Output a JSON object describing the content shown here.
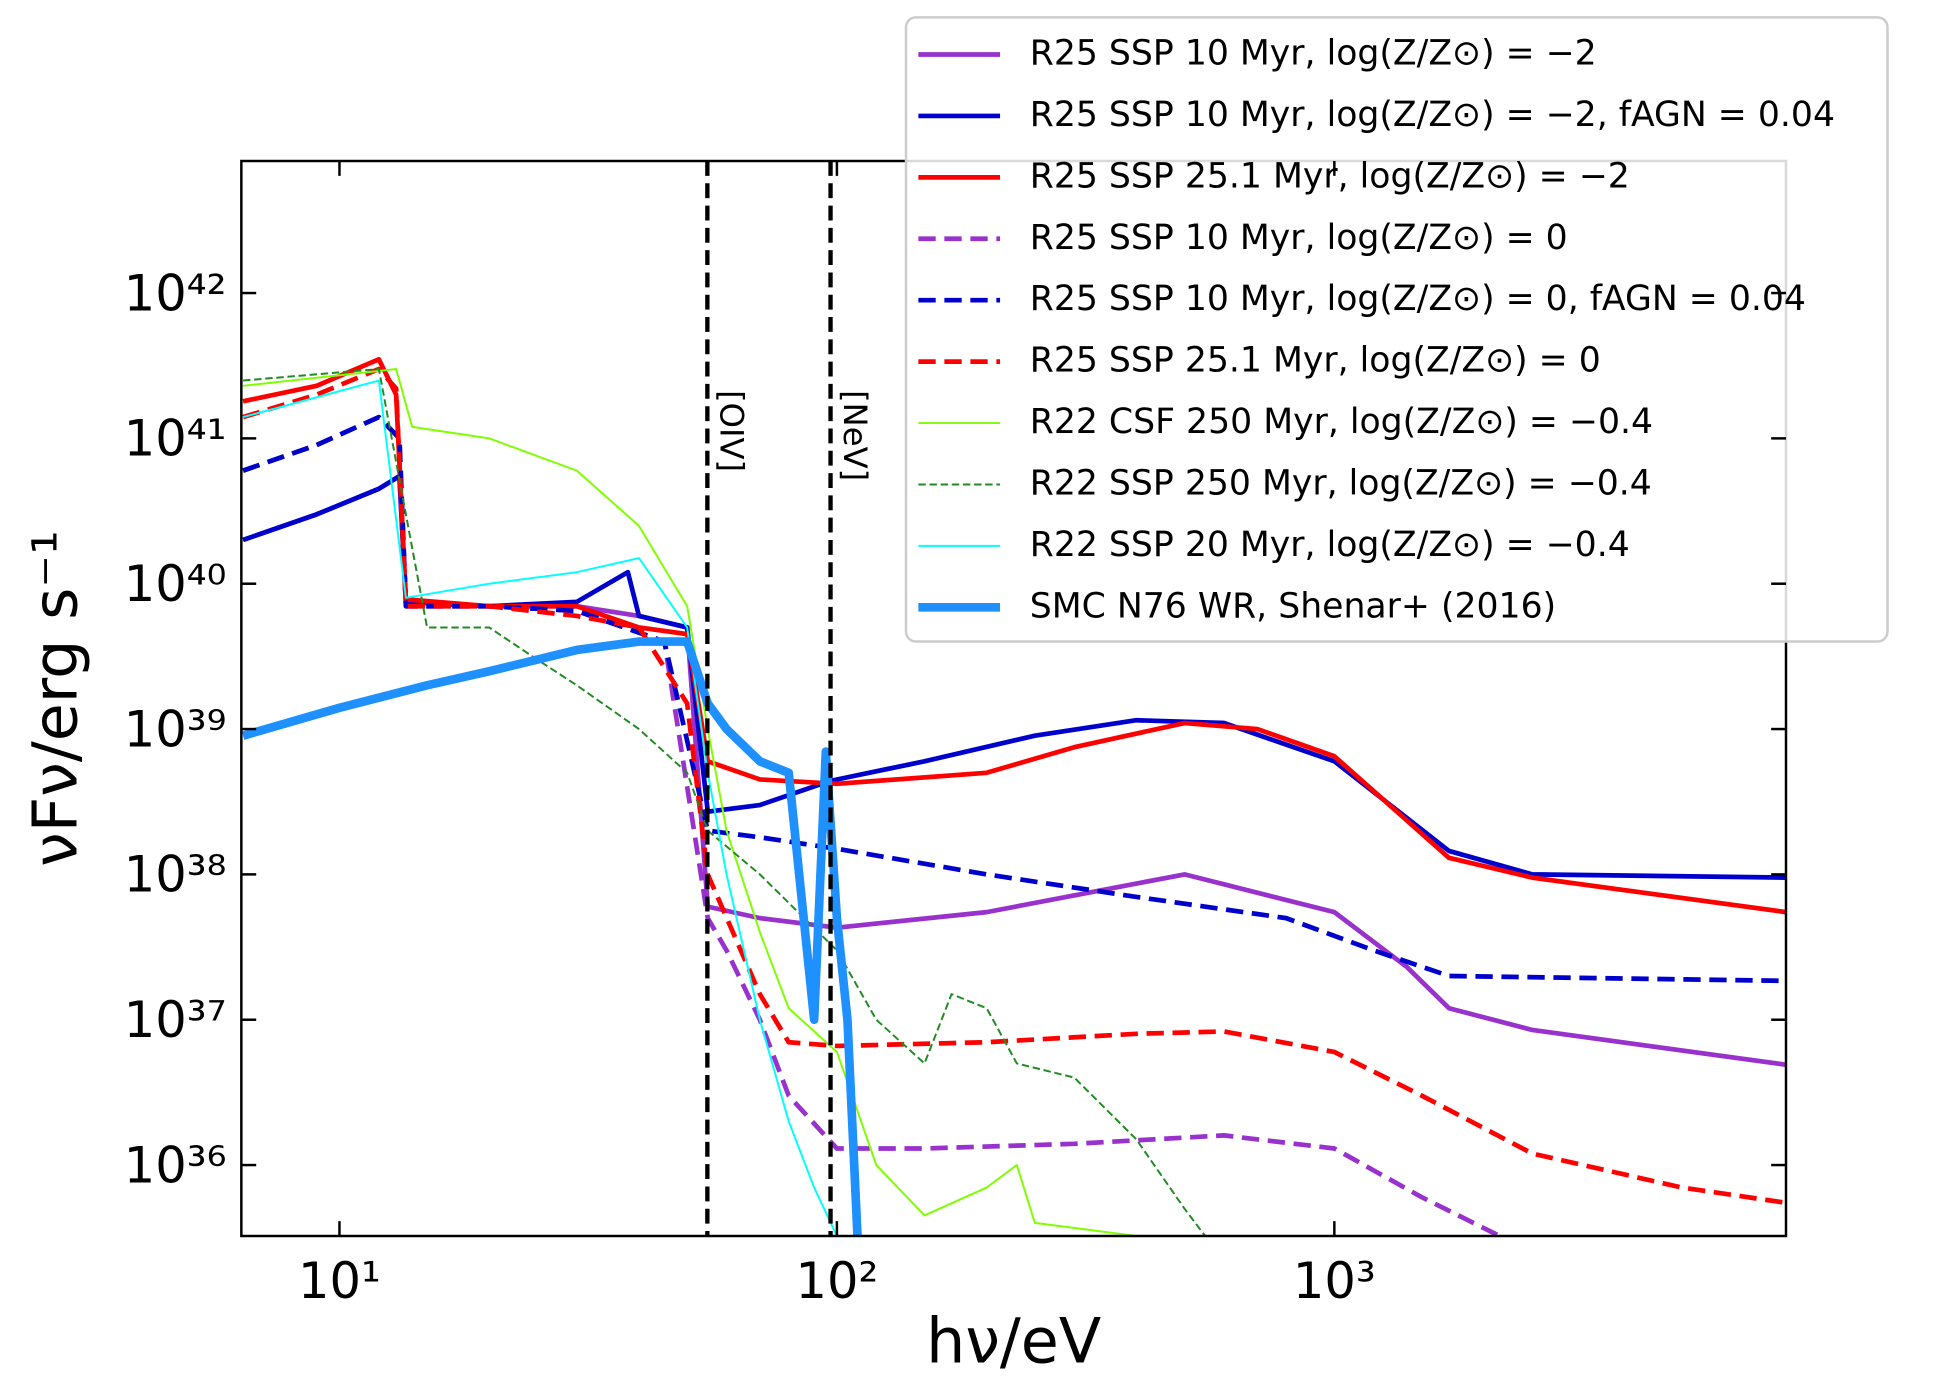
{
  "chart_data": {
    "type": "line",
    "xscale": "log",
    "yscale": "log",
    "xlabel": "hν/eV",
    "ylabel": "νFν/erg s⁻¹",
    "xlim": [
      6.35,
      8090
    ],
    "ylim": [
      3.25e+35,
      8.1e+42
    ],
    "xticks": [
      {
        "value": 10,
        "label": "10¹"
      },
      {
        "value": 100,
        "label": "10²"
      },
      {
        "value": 1000,
        "label": "10³"
      }
    ],
    "yticks": [
      {
        "value": 1e+36,
        "label": "10³⁶"
      },
      {
        "value": 1e+37,
        "label": "10³⁷"
      },
      {
        "value": 1e+38,
        "label": "10³⁸"
      },
      {
        "value": 1e+39,
        "label": "10³⁹"
      },
      {
        "value": 1e+40,
        "label": "10⁴⁰"
      },
      {
        "value": 1e+41,
        "label": "10⁴¹"
      },
      {
        "value": 1e+42,
        "label": "10⁴²"
      }
    ],
    "legend": "upper right",
    "annotations": [
      {
        "text": "[OIV]",
        "x": 54.9
      },
      {
        "text": "[NeV]",
        "x": 97.1
      }
    ],
    "series": [
      {
        "name": "R25 SSP 10 Myr, log(Z/Z⊙) = −2",
        "color": "#9932cc",
        "linestyle": "solid",
        "linewidth": "medium",
        "x": [
          6.4,
          9,
          12,
          13.2,
          13.6,
          20,
          30,
          40,
          50,
          55,
          70,
          100,
          200,
          500,
          1000,
          1400,
          1700,
          2500,
          8090
        ],
        "values": [
          2e+40,
          3e+40,
          4.5e+40,
          5.5e+40,
          7.5e+39,
          7e+39,
          7e+39,
          6e+39,
          5e+39,
          6e+37,
          5e+37,
          4.3e+37,
          5.5e+37,
          1e+38,
          5.5e+37,
          2.3e+37,
          1.2e+37,
          8.5e+36,
          4.9e+36
        ]
      },
      {
        "name": "R25 SSP 10 Myr, log(Z/Z⊙) = −2, fAGN = 0.04",
        "color": "#0000cd",
        "linestyle": "solid",
        "linewidth": "medium",
        "x": [
          6.4,
          9,
          12,
          13.2,
          13.6,
          20,
          30,
          38,
          40,
          50,
          55,
          70,
          97,
          150,
          250,
          400,
          600,
          1000,
          1700,
          2500,
          8090
        ],
        "values": [
          2e+40,
          3e+40,
          4.5e+40,
          5.5e+40,
          7.5e+39,
          7e+39,
          7.5e+39,
          1.2e+40,
          6e+39,
          5e+39,
          2.7e+38,
          3e+38,
          4.4e+38,
          6e+38,
          9e+38,
          1.15e+39,
          1.1e+39,
          6e+38,
          1.45e+38,
          1e+38,
          9.5e+37
        ]
      },
      {
        "name": "R25 SSP 25.1 Myr, log(Z/Z⊙) = −2",
        "color": "#ff0000",
        "linestyle": "solid",
        "linewidth": "medium",
        "x": [
          6.4,
          9,
          12,
          13,
          13.6,
          20,
          30,
          40,
          50,
          55,
          70,
          100,
          200,
          300,
          500,
          700,
          1000,
          1700,
          2500,
          8090
        ],
        "values": [
          1.8e+41,
          2.3e+41,
          3.5e+41,
          2e+41,
          7.8e+39,
          7e+39,
          7e+39,
          5e+39,
          4.5e+39,
          6e+38,
          4.5e+38,
          4.2e+38,
          5e+38,
          7.5e+38,
          1.1e+39,
          1e+39,
          6.5e+38,
          1.3e+38,
          9.5e+37,
          5.5e+37
        ]
      },
      {
        "name": "R25 SSP 10 Myr, log(Z/Z⊙) = 0",
        "color": "#9932cc",
        "linestyle": "dashed",
        "linewidth": "medium",
        "x": [
          6.4,
          9,
          12,
          13.2,
          13.6,
          20,
          30,
          45,
          55,
          60,
          70,
          80,
          100,
          150,
          300,
          600,
          1000,
          1500,
          2150
        ],
        "values": [
          6e+40,
          9e+40,
          1.4e+41,
          1e+41,
          7e+39,
          7e+39,
          6.5e+39,
          4e+39,
          5e+37,
          3e+37,
          1e+37,
          3e+36,
          1.3e+36,
          1.3e+36,
          1.4e+36,
          1.6e+36,
          1.3e+36,
          6e+35,
          3.25e+35
        ]
      },
      {
        "name": "R25 SSP 10 Myr, log(Z/Z⊙) = 0, fAGN = 0.04",
        "color": "#0000cd",
        "linestyle": "dashed",
        "linewidth": "medium",
        "x": [
          6.4,
          9,
          12,
          13.2,
          13.6,
          20,
          30,
          45,
          55,
          70,
          100,
          200,
          400,
          800,
          1200,
          1700,
          8090
        ],
        "values": [
          6e+40,
          9e+40,
          1.4e+41,
          1e+41,
          7e+39,
          7e+39,
          6.5e+39,
          4e+39,
          2e+38,
          1.8e+38,
          1.5e+38,
          1e+38,
          7e+37,
          5e+37,
          3e+37,
          2e+37,
          1.85e+37
        ]
      },
      {
        "name": "R25 SSP 25.1 Myr, log(Z/Z⊙) = 0",
        "color": "#ff0000",
        "linestyle": "dashed",
        "linewidth": "medium",
        "x": [
          6.4,
          9,
          12,
          13,
          13.6,
          20,
          30,
          40,
          50,
          55,
          70,
          80,
          100,
          200,
          400,
          600,
          1000,
          1500,
          2500,
          5000,
          8090
        ],
        "values": [
          1.4e+41,
          2e+41,
          3e+41,
          2.2e+41,
          7e+39,
          7e+39,
          6e+39,
          5e+39,
          1.5e+39,
          1e+38,
          1.5e+37,
          7e+36,
          6.6e+36,
          7e+36,
          8e+36,
          8.3e+36,
          6e+36,
          3e+36,
          1.2e+36,
          7e+35,
          5.5e+35
        ]
      },
      {
        "name": "R22 CSF 250 Myr, log(Z/Z⊙) = −0.4",
        "color": "#7fff00",
        "linestyle": "solid",
        "linewidth": "thin",
        "x": [
          6.4,
          13,
          14,
          20,
          30,
          40,
          50,
          55,
          60,
          70,
          80,
          100,
          120,
          150,
          200,
          230,
          250,
          400
        ],
        "values": [
          2.3e+41,
          3e+41,
          1.2e+41,
          1e+41,
          6e+40,
          2.5e+40,
          7e+39,
          1e+39,
          2e+38,
          4e+37,
          1.2e+37,
          6e+36,
          1e+36,
          4.5e+35,
          7e+35,
          1e+36,
          4e+35,
          3.25e+35
        ]
      },
      {
        "name": "R22 SSP 250 Myr, log(Z/Z⊙) = −0.4",
        "color": "#228b22",
        "linestyle": "dashed",
        "linewidth": "thin",
        "x": [
          6.4,
          12,
          13.6,
          15,
          20,
          25,
          30,
          40,
          50,
          55,
          70,
          100,
          120,
          150,
          170,
          200,
          230,
          300,
          400,
          500,
          550
        ],
        "values": [
          2.5e+41,
          3e+41,
          3e+40,
          5e+39,
          5e+39,
          3e+39,
          2e+39,
          1e+39,
          5e+38,
          2e+38,
          1e+38,
          3e+37,
          1e+37,
          5e+36,
          1.5e+37,
          1.2e+37,
          5e+36,
          4e+36,
          1.5e+36,
          5e+35,
          3.25e+35
        ]
      },
      {
        "name": "R22 SSP 20 Myr, log(Z/Z⊙) = −0.4",
        "color": "#00ffff",
        "linestyle": "solid",
        "linewidth": "thin",
        "x": [
          6.4,
          12,
          13.6,
          20,
          30,
          40,
          50,
          55,
          60,
          70,
          80,
          90,
          100
        ],
        "values": [
          1.4e+41,
          2.5e+41,
          8e+39,
          1e+40,
          1.2e+40,
          1.5e+40,
          5e+39,
          5e+38,
          1e+38,
          1e+37,
          2e+36,
          7e+35,
          3.25e+35
        ]
      },
      {
        "name": "SMC N76 WR, Shenar+ (2016)",
        "color": "#1e90ff",
        "linestyle": "solid",
        "linewidth": "thick",
        "x": [
          6.4,
          10,
          15,
          20,
          30,
          40,
          50,
          55,
          60,
          70,
          80,
          90,
          95,
          100,
          105,
          110
        ],
        "values": [
          9e+38,
          1.4e+39,
          2e+39,
          2.5e+39,
          3.5e+39,
          4e+39,
          4e+39,
          1.5e+39,
          1e+39,
          6e+38,
          5e+38,
          1e+37,
          7e+38,
          5e+37,
          1e+37,
          3.25e+35
        ]
      }
    ]
  }
}
